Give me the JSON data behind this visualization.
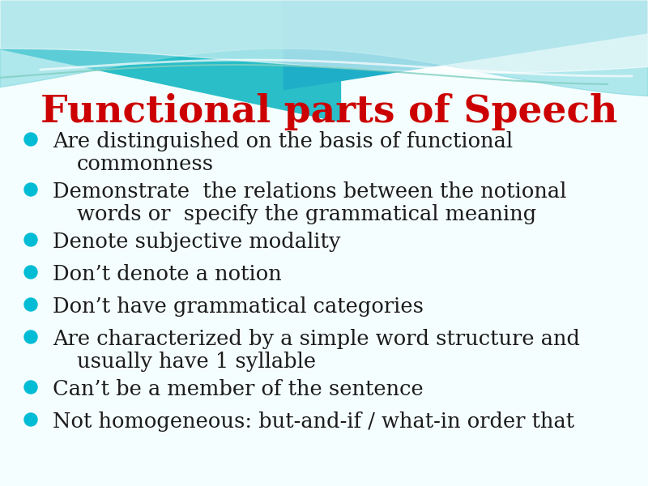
{
  "title": "Functional parts of Speech",
  "title_color": "#cc0000",
  "title_fontsize": 34,
  "bg_color": "#f5fefe",
  "bullet_color": "#00bcd4",
  "text_color": "#1c1c1c",
  "text_fontsize": 18.5,
  "bullet_items": [
    [
      "Are distinguished on the basis of functional",
      "commonness"
    ],
    [
      "Demonstrate  the relations between the notional",
      "words or  specify the grammatical meaning"
    ],
    [
      "Denote subjective modality"
    ],
    [
      "Don’t denote a notion"
    ],
    [
      "Don’t have grammatical categories"
    ],
    [
      "Are characterized by a simple word structure and",
      "usually have 1 syllable"
    ],
    [
      "Can’t be a member of the sentence"
    ],
    [
      "Not homogeneous: but-and-if / what-in order that"
    ]
  ],
  "wave_bg_color": "#29bec8",
  "wave_mid_color": "#7fd8e0",
  "wave_light_color": "#b2ecf0",
  "wave_right_color": "#1eaec8",
  "wave_green_color": "#80cfc0"
}
